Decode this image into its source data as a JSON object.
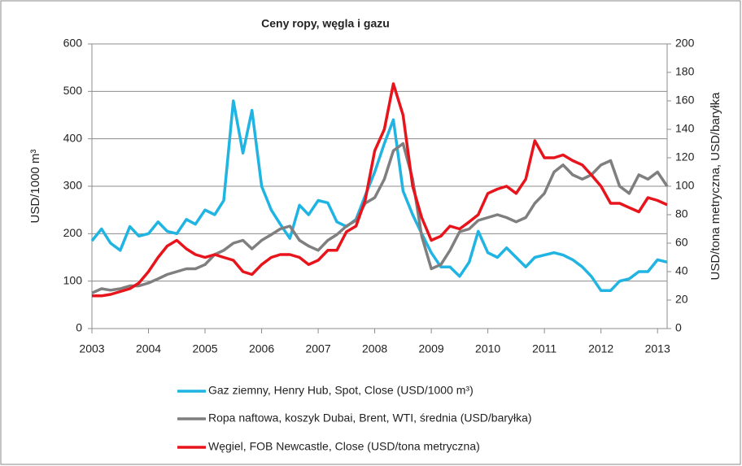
{
  "chart_data": {
    "type": "line",
    "title": "Ceny ropy, węgla i gazu",
    "ylabel": "USD/1000 m³",
    "y2label": "USD/tona metryczna, USD/baryłka",
    "x": [
      2003.0,
      2003.17,
      2003.33,
      2003.5,
      2003.67,
      2003.83,
      2004.0,
      2004.17,
      2004.33,
      2004.5,
      2004.67,
      2004.83,
      2005.0,
      2005.17,
      2005.33,
      2005.5,
      2005.67,
      2005.83,
      2006.0,
      2006.17,
      2006.33,
      2006.5,
      2006.67,
      2006.83,
      2007.0,
      2007.17,
      2007.33,
      2007.5,
      2007.67,
      2007.83,
      2008.0,
      2008.17,
      2008.33,
      2008.5,
      2008.67,
      2008.83,
      2009.0,
      2009.17,
      2009.33,
      2009.5,
      2009.67,
      2009.83,
      2010.0,
      2010.17,
      2010.33,
      2010.5,
      2010.67,
      2010.83,
      2011.0,
      2011.17,
      2011.33,
      2011.5,
      2011.67,
      2011.83,
      2012.0,
      2012.17,
      2012.33,
      2012.5,
      2012.67,
      2012.83,
      2013.0,
      2013.17
    ],
    "series": [
      {
        "name": "Gaz ziemny, Henry Hub, Spot, Close (USD/1000 m³)",
        "color": "#1fb4e2",
        "axis": "y",
        "values": [
          185,
          210,
          180,
          165,
          215,
          195,
          200,
          225,
          205,
          200,
          230,
          220,
          250,
          240,
          270,
          480,
          370,
          460,
          300,
          250,
          220,
          190,
          260,
          240,
          270,
          265,
          225,
          215,
          230,
          280,
          330,
          390,
          440,
          290,
          240,
          200,
          160,
          130,
          130,
          110,
          140,
          205,
          160,
          150,
          170,
          150,
          130,
          150,
          155,
          160,
          155,
          145,
          130,
          110,
          80,
          80,
          100,
          105,
          120,
          120,
          145,
          140
        ]
      },
      {
        "name": "Ropa naftowa, koszyk Dubai, Brent, WTI, średnia (USD/baryłka)",
        "color": "#7f7f7f",
        "axis": "y2",
        "values": [
          25,
          28,
          27,
          28,
          30,
          30,
          32,
          35,
          38,
          40,
          42,
          42,
          45,
          52,
          55,
          60,
          62,
          56,
          62,
          66,
          70,
          72,
          62,
          58,
          55,
          62,
          66,
          72,
          76,
          88,
          92,
          105,
          125,
          130,
          105,
          65,
          42,
          45,
          55,
          68,
          70,
          76,
          78,
          80,
          78,
          75,
          78,
          88,
          95,
          110,
          115,
          108,
          105,
          108,
          115,
          118,
          100,
          95,
          108,
          105,
          110,
          100
        ]
      },
      {
        "name": "Węgiel, FOB Newcastle, Close (USD/tona metryczna)",
        "color": "#e8141c",
        "axis": "y2",
        "values": [
          23,
          23,
          24,
          26,
          28,
          32,
          40,
          50,
          58,
          62,
          56,
          52,
          50,
          52,
          50,
          48,
          40,
          38,
          45,
          50,
          52,
          52,
          50,
          45,
          48,
          55,
          55,
          68,
          72,
          90,
          125,
          140,
          172,
          150,
          100,
          78,
          62,
          65,
          72,
          70,
          75,
          80,
          95,
          98,
          100,
          95,
          105,
          132,
          120,
          120,
          122,
          118,
          115,
          108,
          100,
          88,
          88,
          85,
          82,
          92,
          90,
          87
        ]
      }
    ],
    "xlim": [
      2003,
      2013.17
    ],
    "xticks": [
      2003,
      2004,
      2005,
      2006,
      2007,
      2008,
      2009,
      2010,
      2011,
      2012,
      2013
    ],
    "ylim": [
      0,
      600
    ],
    "yticks": [
      0,
      100,
      200,
      300,
      400,
      500,
      600
    ],
    "y2lim": [
      0,
      200
    ],
    "y2ticks": [
      0,
      20,
      40,
      60,
      80,
      100,
      120,
      140,
      160,
      180,
      200
    ],
    "grid": true
  }
}
